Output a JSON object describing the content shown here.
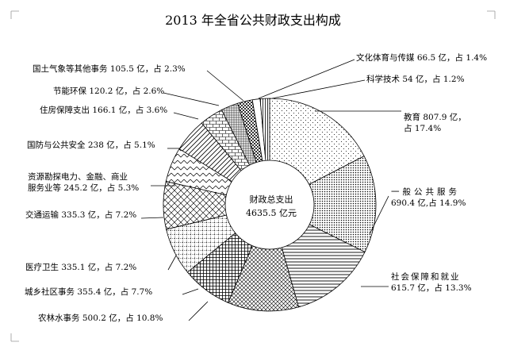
{
  "chart_data": {
    "type": "pie",
    "title": "2013 年全省公共财政支出构成",
    "center_label": [
      "财政总支出",
      "4635.5 亿元"
    ],
    "slices": [
      {
        "name": "教育",
        "value": 807.9,
        "percent": 17.4,
        "pattern": "dots",
        "label": [
          "教育 807.9 亿，",
          "占 17.4%"
        ]
      },
      {
        "name": "一般公共服务",
        "value": 690.4,
        "percent": 14.9,
        "pattern": "dense-dots",
        "label": [
          "一般公共服务",
          "690.4 亿,占 14.9%"
        ]
      },
      {
        "name": "社会保障和就业",
        "value": 615.7,
        "percent": 13.3,
        "pattern": "hstripe",
        "label": [
          "社会保障和就业",
          "615.7 亿，占 13.3%"
        ]
      },
      {
        "name": "农林水事务",
        "value": 500.2,
        "percent": 10.8,
        "pattern": "hatch",
        "label": [
          "农林水事务 500.2 亿，占 10.8%"
        ]
      },
      {
        "name": "城乡社区事务",
        "value": 355.4,
        "percent": 7.7,
        "pattern": "grid",
        "label": [
          "城乡社区事务 355.4 亿，占 7.7%"
        ]
      },
      {
        "name": "医疗卫生",
        "value": 335.1,
        "percent": 7.2,
        "pattern": "dotgrid",
        "label": [
          "医疗卫生 335.1 亿，占 7.2%"
        ]
      },
      {
        "name": "交通运输",
        "value": 335.3,
        "percent": 7.2,
        "pattern": "diamond",
        "label": [
          "交通运输 335.3 亿，占 7.2%"
        ]
      },
      {
        "name": "资源勘探电力、金融、商业服务业等",
        "value": 245.2,
        "percent": 5.3,
        "pattern": "zigzag",
        "label": [
          "资源勘探电力、金融、商业",
          "服务业等 245.2 亿，占 5.3%"
        ]
      },
      {
        "name": "国防与公共安全",
        "value": 238,
        "percent": 5.1,
        "pattern": "diagonal",
        "label": [
          "国防与公共安全 238 亿，占 5.1%"
        ]
      },
      {
        "name": "住房保障支出",
        "value": 166.1,
        "percent": 3.6,
        "pattern": "brick",
        "label": [
          "住房保障支出 166.1 亿，占 3.6%"
        ]
      },
      {
        "name": "节能环保",
        "value": 120.2,
        "percent": 2.6,
        "pattern": "plaid",
        "label": [
          "节能环保 120.2 亿，占 2.6%"
        ]
      },
      {
        "name": "国土气象等其他事务",
        "value": 105.5,
        "percent": 2.3,
        "pattern": "checker",
        "label": [
          "国土气象等其他事务 105.5 亿，占 2.3%"
        ]
      },
      {
        "name": "科学技术",
        "value": 54,
        "percent": 1.2,
        "pattern": "white",
        "label": [
          "科学技术 54 亿，占 1.2%"
        ]
      },
      {
        "name": "文化体育与传媒",
        "value": 66.5,
        "percent": 1.4,
        "pattern": "vstripe",
        "label": [
          "文化体育与传媒 66.5 亿，占 1.4%"
        ]
      }
    ]
  }
}
